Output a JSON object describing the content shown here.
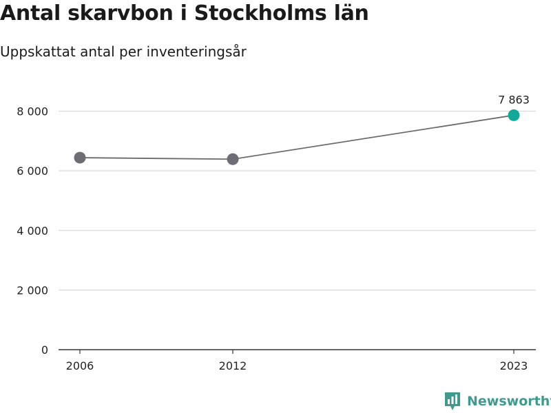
{
  "chart_data": {
    "type": "line",
    "title": "Antal skarvbon i Stockholms län",
    "subtitle": "Uppskattat antal per inventeringsår",
    "x": [
      "2006",
      "2012",
      "2023"
    ],
    "values": [
      6440,
      6390,
      7863
    ],
    "highlight_label": "7 863",
    "ylim": [
      0,
      9000
    ],
    "yticks": [
      0,
      2000,
      4000,
      6000,
      8000
    ],
    "ytick_labels": [
      "0",
      "2 000",
      "4 000",
      "6 000",
      "8 000"
    ],
    "grid": true,
    "colors": {
      "line": "#6b6b6b",
      "point": "#6e6d75",
      "highlight": "#12a89a",
      "grid": "#d9d9d9",
      "axis": "#333333"
    }
  },
  "brand": {
    "name": "Newsworthy",
    "icon": "newsworthy-logo-icon",
    "color": "#3f9a8d"
  }
}
